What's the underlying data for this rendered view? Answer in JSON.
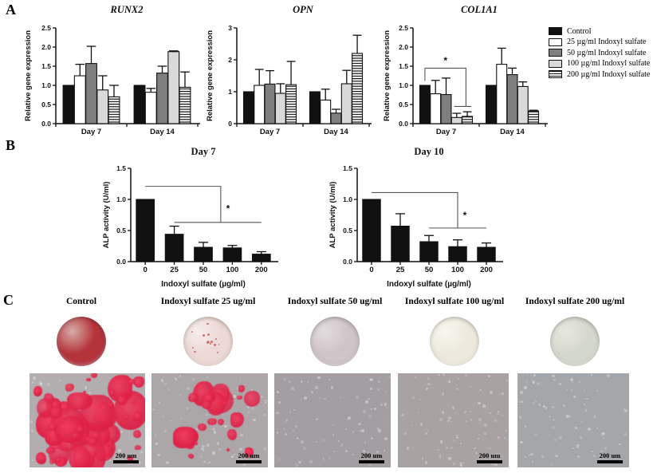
{
  "panels": {
    "a": {
      "label": "A"
    },
    "b": {
      "label": "B"
    },
    "c": {
      "label": "C"
    }
  },
  "bar_styles": {
    "black": "#111111",
    "white": "#ffffff",
    "darkgray": "#7f7f7f",
    "lightgray": "#d9d9d9",
    "stripe_fg": "#111111",
    "stripe_bg": "#ffffff"
  },
  "legend": {
    "items": [
      {
        "label": "Control",
        "style": "black"
      },
      {
        "label": "25 µg/ml Indoxyl sulfate",
        "style": "white"
      },
      {
        "label": "50 µg/ml Indoxyl sulfate",
        "style": "darkgray"
      },
      {
        "label": "100 µg/ml Indoxyl sulfate",
        "style": "lightgray"
      },
      {
        "label": "200 µg/ml Indoxyl sulfate",
        "style": "stripes"
      }
    ]
  },
  "chart_data": [
    {
      "id": "runx2",
      "type": "bar",
      "title": "RUNX2",
      "title_italic": true,
      "ylabel": "Relative gene expression",
      "ylim": [
        0,
        2.5
      ],
      "ytick_labels": [
        "0.0",
        "0.5",
        "1.0",
        "1.5",
        "2.0",
        "2.5"
      ],
      "group_labels": [
        "Day 7",
        "Day 14"
      ],
      "series": [
        {
          "name": "Control",
          "style": "black",
          "values": [
            1.0,
            1.0
          ],
          "errors": [
            0,
            0
          ]
        },
        {
          "name": "25 µg/ml Indoxyl sulfate",
          "style": "white",
          "values": [
            1.25,
            0.82
          ],
          "errors": [
            0.3,
            0.1
          ]
        },
        {
          "name": "50 µg/ml Indoxyl sulfate",
          "style": "darkgray",
          "values": [
            1.57,
            1.32
          ],
          "errors": [
            0.45,
            0.18
          ]
        },
        {
          "name": "100 µg/ml Indoxyl sulfate",
          "style": "lightgray",
          "values": [
            0.88,
            1.88
          ],
          "errors": [
            0.37,
            0.02
          ]
        },
        {
          "name": "200 µg/ml Indoxyl sulfate",
          "style": "stripes",
          "values": [
            0.7,
            0.95
          ],
          "errors": [
            0.3,
            0.4
          ]
        }
      ]
    },
    {
      "id": "opn",
      "type": "bar",
      "title": "OPN",
      "title_italic": true,
      "ylabel": "Relative gene expression",
      "ylim": [
        0,
        3
      ],
      "ytick_labels": [
        "0",
        "1",
        "2",
        "3"
      ],
      "group_labels": [
        "Day 7",
        "Day 14"
      ],
      "series": [
        {
          "name": "Control",
          "style": "black",
          "values": [
            1.0,
            1.0
          ],
          "errors": [
            0,
            0
          ]
        },
        {
          "name": "25 µg/ml Indoxyl sulfate",
          "style": "white",
          "values": [
            1.2,
            0.74
          ],
          "errors": [
            0.5,
            0.34
          ]
        },
        {
          "name": "50 µg/ml Indoxyl sulfate",
          "style": "darkgray",
          "values": [
            1.24,
            0.33
          ],
          "errors": [
            0.42,
            0.12
          ]
        },
        {
          "name": "100 µg/ml Indoxyl sulfate",
          "style": "lightgray",
          "values": [
            0.95,
            1.25
          ],
          "errors": [
            0.3,
            0.42
          ]
        },
        {
          "name": "200 µg/ml Indoxyl sulfate",
          "style": "stripes",
          "values": [
            1.22,
            2.2
          ],
          "errors": [
            0.73,
            0.57
          ]
        }
      ]
    },
    {
      "id": "col1a1",
      "type": "bar",
      "title": "COL1A1",
      "title_italic": true,
      "ylabel": "Relative gene expression",
      "ylim": [
        0,
        2.5
      ],
      "ytick_labels": [
        "0.0",
        "0.5",
        "1.0",
        "1.5",
        "2.0",
        "2.5"
      ],
      "group_labels": [
        "Day 7",
        "Day 14"
      ],
      "series": [
        {
          "name": "Control",
          "style": "black",
          "values": [
            1.0,
            1.0
          ],
          "errors": [
            0,
            0
          ]
        },
        {
          "name": "25 µg/ml Indoxyl sulfate",
          "style": "white",
          "values": [
            0.78,
            1.55
          ],
          "errors": [
            0.35,
            0.42
          ]
        },
        {
          "name": "50 µg/ml Indoxyl sulfate",
          "style": "darkgray",
          "values": [
            0.76,
            1.28
          ],
          "errors": [
            0.43,
            0.17
          ]
        },
        {
          "name": "100 µg/ml Indoxyl sulfate",
          "style": "lightgray",
          "values": [
            0.16,
            0.97
          ],
          "errors": [
            0.11,
            0.12
          ]
        },
        {
          "name": "200 µg/ml Indoxyl sulfate",
          "style": "stripes",
          "values": [
            0.19,
            0.33
          ],
          "errors": [
            0.12,
            0.02
          ]
        }
      ],
      "sig": {
        "lines": [
          [
            [
              0.09,
              1.12
            ],
            [
              0.09,
              1.45
            ],
            [
              0.4,
              1.45
            ],
            [
              0.4,
              0.45
            ]
          ],
          [
            [
              0.31,
              0.45
            ],
            [
              0.44,
              0.45
            ]
          ]
        ],
        "stars": [
          {
            "fx": 0.245,
            "y": 1.56,
            "label": "*"
          }
        ]
      }
    },
    {
      "id": "alp_day7",
      "type": "bar",
      "title": "Day 7",
      "title_italic": false,
      "ylabel": "ALP activity (U/ml)",
      "xlabel": "Indoxyl sulfate (µg/ml)",
      "ylim": [
        0,
        1.5
      ],
      "ytick_labels": [
        "0.0",
        "0.5",
        "1.0",
        "1.5"
      ],
      "categories": [
        "0",
        "25",
        "50",
        "100",
        "200"
      ],
      "values": [
        1.0,
        0.44,
        0.23,
        0.22,
        0.12
      ],
      "errors": [
        0,
        0.13,
        0.08,
        0.04,
        0.04
      ],
      "sig": {
        "lines": [
          [
            [
              0.1,
              1.21
            ],
            [
              0.62,
              1.21
            ],
            [
              0.62,
              0.63
            ]
          ],
          [
            [
              0.3,
              0.63
            ],
            [
              0.9,
              0.63
            ]
          ]
        ],
        "stars": [
          {
            "fx": 0.67,
            "y": 0.8,
            "label": "*"
          }
        ]
      }
    },
    {
      "id": "alp_day10",
      "type": "bar",
      "title": "Day 10",
      "title_italic": false,
      "ylabel": "ALP activity (U/ml)",
      "xlabel": "Indoxyl sulfate (µg/ml)",
      "ylim": [
        0,
        1.5
      ],
      "ytick_labels": [
        "0.0",
        "0.5",
        "1.0",
        "1.5"
      ],
      "categories": [
        "0",
        "25",
        "50",
        "100",
        "200"
      ],
      "values": [
        1.0,
        0.57,
        0.32,
        0.24,
        0.23
      ],
      "errors": [
        0,
        0.2,
        0.1,
        0.11,
        0.07
      ],
      "sig": {
        "lines": [
          [
            [
              0.1,
              1.11
            ],
            [
              0.7,
              1.11
            ],
            [
              0.7,
              0.54
            ]
          ],
          [
            [
              0.5,
              0.54
            ],
            [
              0.9,
              0.54
            ]
          ]
        ],
        "stars": [
          {
            "fx": 0.75,
            "y": 0.69,
            "label": "*"
          }
        ]
      }
    }
  ],
  "panel_c": {
    "scale_bar_label": "200 um",
    "stain_color": "#dd2046",
    "columns": [
      {
        "label": "Control",
        "well": {
          "base": "#b5343c",
          "patch": "#d7aca6",
          "rim": "#8e2531",
          "speckles": 0,
          "speckle_color": "#8e2531"
        },
        "micro": {
          "base": "#b2adaf",
          "red_blobs": 30,
          "blob_max": 34,
          "cluster": false
        }
      },
      {
        "label": "Indoxyl sulfate 25 ug/ml",
        "well": {
          "base": "#ecd9d5",
          "patch": "#f6edeb",
          "rim": "#d3b4ae",
          "speckles": 16,
          "speckle_color": "#c35b5b"
        },
        "micro": {
          "base": "#aba7a9",
          "red_blobs": 11,
          "blob_max": 26,
          "cluster": true
        }
      },
      {
        "label": "Indoxyl sulfate 50 ug/ml",
        "well": {
          "base": "#cfc5c8",
          "patch": "#e3dbdd",
          "rim": "#b4a6ab",
          "speckles": 0,
          "speckle_color": "#b4a6ab"
        },
        "micro": {
          "base": "#a29ea1",
          "red_blobs": 0,
          "blob_max": 0,
          "cluster": false
        }
      },
      {
        "label": "Indoxyl sulfate 100 ug/ml",
        "well": {
          "base": "#edeadd",
          "patch": "#f8f6ee",
          "rim": "#d6d2c0",
          "speckles": 0,
          "speckle_color": "#d6d2c0"
        },
        "micro": {
          "base": "#a8a2a3",
          "red_blobs": 0,
          "blob_max": 0,
          "cluster": false
        }
      },
      {
        "label": "Indoxyl sulfate 200 ug/ml",
        "well": {
          "base": "#d5d8cc",
          "patch": "#e6e8de",
          "rim": "#bcc0b0",
          "speckles": 0,
          "speckle_color": "#bcc0b0"
        },
        "micro": {
          "base": "#a4a7aa",
          "red_blobs": 0,
          "blob_max": 0,
          "cluster": false
        }
      }
    ]
  }
}
